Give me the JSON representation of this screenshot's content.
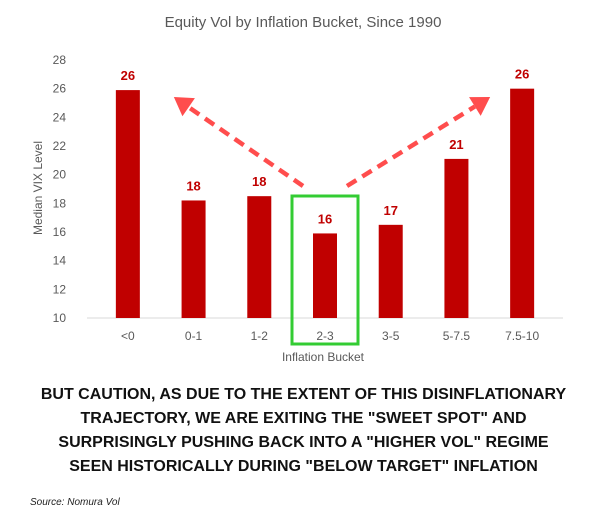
{
  "chart_data": {
    "type": "bar",
    "title": "Equity Vol by Inflation Bucket, Since 1990",
    "xlabel": "Inflation Bucket",
    "ylabel": "Median VIX Level",
    "categories": [
      "<0",
      "0-1",
      "1-2",
      "2-3",
      "3-5",
      "5-7.5",
      "7.5-10"
    ],
    "values": [
      25.9,
      18.2,
      18.5,
      15.9,
      16.5,
      21.1,
      26.0
    ],
    "data_labels": [
      "26",
      "18",
      "18",
      "16",
      "17",
      "21",
      "26"
    ],
    "yticks": [
      "10",
      "12",
      "14",
      "16",
      "18",
      "20",
      "22",
      "24",
      "26",
      "28"
    ],
    "ylim": [
      10,
      28
    ],
    "grid": false,
    "bar_color": "#c00000",
    "label_color": "#c00000",
    "highlight_category": "2-3",
    "highlight_color": "#33cc33",
    "arrow_color": "#ff4d4d"
  },
  "caption_lines": [
    "BUT CAUTION, AS DUE TO THE EXTENT OF THIS DISINFLATIONARY",
    "TRAJECTORY, WE ARE EXITING THE \"SWEET SPOT\" AND",
    "SURPRISINGLY PUSHING BACK INTO A \"HIGHER VOL\" REGIME",
    "SEEN HISTORICALLY DURING \"BELOW TARGET\" INFLATION"
  ],
  "source": "Source: Nomura Vol"
}
